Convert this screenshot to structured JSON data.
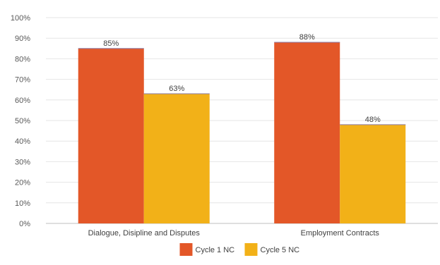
{
  "chart_data": {
    "type": "bar",
    "categories": [
      "Dialogue, Disipline and Disputes",
      "Employment Contracts"
    ],
    "series": [
      {
        "name": "Cycle 1 NC",
        "color": "#E35728",
        "values": [
          85,
          88
        ],
        "labels": [
          "85%",
          "88%"
        ]
      },
      {
        "name": "Cycle 5 NC",
        "color": "#F2B118",
        "values": [
          63,
          48
        ],
        "labels": [
          "63%",
          "48%"
        ]
      }
    ],
    "yticks": [
      "0%",
      "10%",
      "20%",
      "30%",
      "40%",
      "50%",
      "60%",
      "70%",
      "80%",
      "90%",
      "100%"
    ],
    "ylim": [
      0,
      100
    ],
    "grid": true,
    "legend": "bottom"
  }
}
